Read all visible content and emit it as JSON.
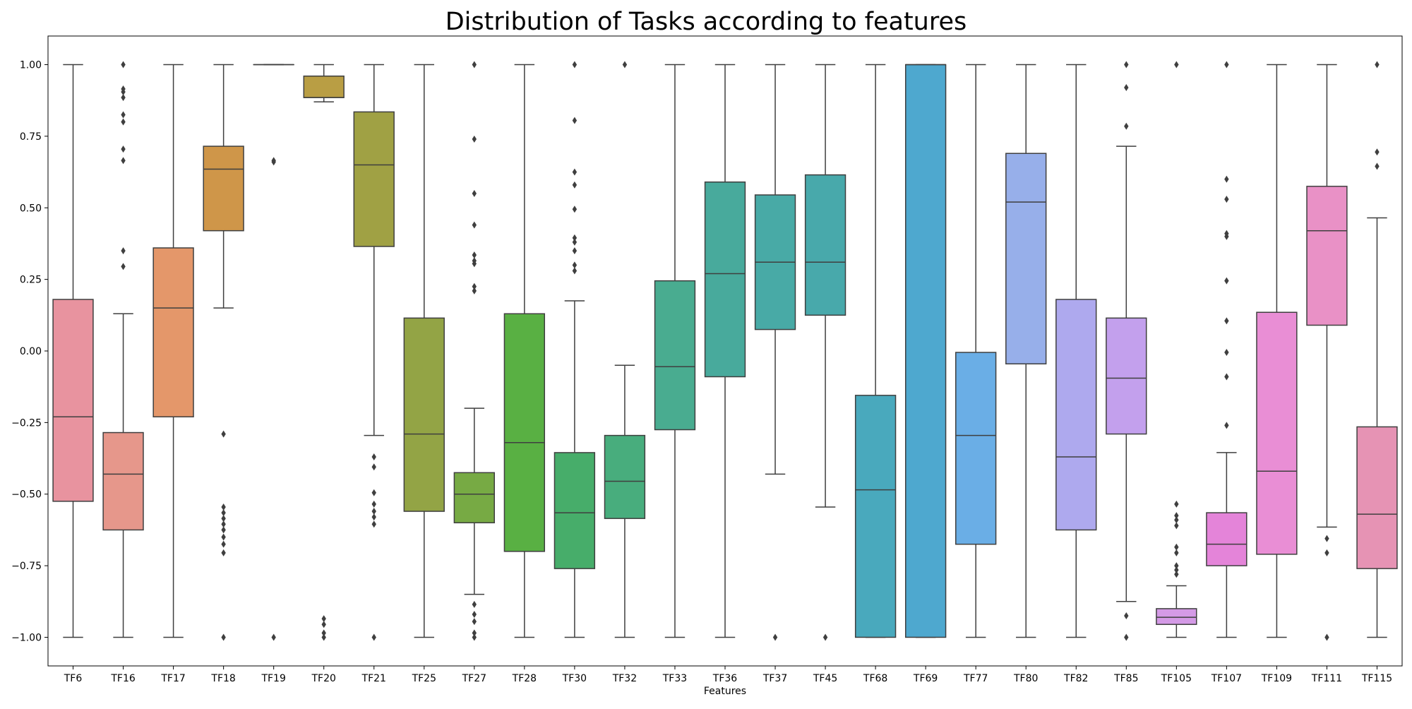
{
  "chart_data": {
    "type": "box",
    "title": "Distribution of Tasks according to features",
    "xlabel": "Features",
    "ylabel": "",
    "ylim": [
      -1.1,
      1.1
    ],
    "yticks": [
      1.0,
      0.75,
      0.5,
      0.25,
      0.0,
      -0.25,
      -0.5,
      -0.75,
      -1.0
    ],
    "ytick_labels": [
      "1.00",
      "0.75",
      "0.50",
      "0.25",
      "0.00",
      "−0.25",
      "−0.50",
      "−0.75",
      "−1.00"
    ],
    "grid": false,
    "legend": "none",
    "categories": [
      "TF6",
      "TF16",
      "TF17",
      "TF18",
      "TF19",
      "TF20",
      "TF21",
      "TF25",
      "TF27",
      "TF28",
      "TF30",
      "TF32",
      "TF33",
      "TF36",
      "TF37",
      "TF45",
      "TF68",
      "TF69",
      "TF77",
      "TF80",
      "TF82",
      "TF85",
      "TF105",
      "TF107",
      "TF109",
      "TF111",
      "TF115"
    ],
    "boxes": [
      {
        "q1": -0.525,
        "median": -0.23,
        "q3": 0.18,
        "whislo": -1.0,
        "whishi": 1.0,
        "fliers": [],
        "color": "#e8939f"
      },
      {
        "q1": -0.625,
        "median": -0.43,
        "q3": -0.285,
        "whislo": -1.0,
        "whishi": 0.13,
        "fliers": [
          0.295,
          0.35,
          0.665,
          0.705,
          0.8,
          0.825,
          0.885,
          0.905,
          0.915,
          1.0
        ],
        "color": "#e6978b"
      },
      {
        "q1": -0.23,
        "median": 0.15,
        "q3": 0.36,
        "whislo": -1.0,
        "whishi": 1.0,
        "fliers": [],
        "color": "#e4976a"
      },
      {
        "q1": 0.42,
        "median": 0.635,
        "q3": 0.715,
        "whislo": 0.15,
        "whishi": 1.0,
        "fliers": [
          -0.29,
          -0.545,
          -0.565,
          -0.585,
          -0.605,
          -0.625,
          -0.65,
          -0.675,
          -0.705,
          -1.0
        ],
        "color": "#cf9649"
      },
      {
        "q1": 1.0,
        "median": 1.0,
        "q3": 1.0,
        "whislo": 1.0,
        "whishi": 1.0,
        "fliers": [
          0.665,
          0.66,
          -1.0
        ],
        "color": "#b99e44"
      },
      {
        "q1": 0.885,
        "median": 0.885,
        "q3": 0.96,
        "whislo": 0.87,
        "whishi": 1.0,
        "fliers": [
          -0.935,
          -0.955,
          -0.985,
          -1.0
        ],
        "color": "#b99e44"
      },
      {
        "q1": 0.365,
        "median": 0.65,
        "q3": 0.835,
        "whislo": -0.295,
        "whishi": 1.0,
        "fliers": [
          -0.37,
          -0.405,
          -0.495,
          -0.535,
          -0.56,
          -0.58,
          -0.605,
          -1.0
        ],
        "color": "#a0a144"
      },
      {
        "q1": -0.56,
        "median": -0.29,
        "q3": 0.115,
        "whislo": -1.0,
        "whishi": 1.0,
        "fliers": [],
        "color": "#93a445"
      },
      {
        "q1": -0.6,
        "median": -0.5,
        "q3": -0.425,
        "whislo": -0.85,
        "whishi": -0.2,
        "fliers": [
          0.21,
          0.225,
          0.305,
          0.315,
          0.335,
          0.44,
          0.55,
          0.74,
          1.0,
          -0.885,
          -0.92,
          -0.945,
          -0.985,
          -1.0
        ],
        "color": "#77aa44"
      },
      {
        "q1": -0.7,
        "median": -0.32,
        "q3": 0.13,
        "whislo": -1.0,
        "whishi": 1.0,
        "fliers": [],
        "color": "#59b043"
      },
      {
        "q1": -0.76,
        "median": -0.565,
        "q3": -0.355,
        "whislo": -1.0,
        "whishi": 0.175,
        "fliers": [
          0.28,
          0.3,
          0.35,
          0.38,
          0.395,
          0.495,
          0.58,
          0.625,
          0.805,
          1.0
        ],
        "color": "#47ad6a"
      },
      {
        "q1": -0.585,
        "median": -0.455,
        "q3": -0.295,
        "whislo": -1.0,
        "whishi": -0.05,
        "fliers": [
          1.0
        ],
        "color": "#48ad7d"
      },
      {
        "q1": -0.275,
        "median": -0.055,
        "q3": 0.245,
        "whislo": -1.0,
        "whishi": 1.0,
        "fliers": [],
        "color": "#49ac90"
      },
      {
        "q1": -0.09,
        "median": 0.27,
        "q3": 0.59,
        "whislo": -1.0,
        "whishi": 1.0,
        "fliers": [],
        "color": "#48aa9c"
      },
      {
        "q1": 0.075,
        "median": 0.31,
        "q3": 0.545,
        "whislo": -0.43,
        "whishi": 1.0,
        "fliers": [
          -1.0
        ],
        "color": "#48aaa6"
      },
      {
        "q1": 0.125,
        "median": 0.31,
        "q3": 0.615,
        "whislo": -0.545,
        "whishi": 1.0,
        "fliers": [
          -1.0
        ],
        "color": "#48a9ab"
      },
      {
        "q1": -1.0,
        "median": -0.485,
        "q3": -0.155,
        "whislo": -1.0,
        "whishi": 1.0,
        "fliers": [],
        "color": "#49a9bd"
      },
      {
        "q1": -1.0,
        "median": 1.0,
        "q3": 1.0,
        "whislo": -1.0,
        "whishi": 1.0,
        "fliers": [],
        "color": "#4ea8cf"
      },
      {
        "q1": -0.675,
        "median": -0.295,
        "q3": -0.005,
        "whislo": -1.0,
        "whishi": 1.0,
        "fliers": [],
        "color": "#6aaee6"
      },
      {
        "q1": -0.045,
        "median": 0.52,
        "q3": 0.69,
        "whislo": -1.0,
        "whishi": 1.0,
        "fliers": [],
        "color": "#97afea"
      },
      {
        "q1": -0.625,
        "median": -0.37,
        "q3": 0.18,
        "whislo": -1.0,
        "whishi": 1.0,
        "fliers": [],
        "color": "#aea9ee"
      },
      {
        "q1": -0.29,
        "median": -0.095,
        "q3": 0.115,
        "whislo": -0.875,
        "whishi": 0.715,
        "fliers": [
          0.785,
          0.92,
          1.0,
          -0.925,
          -1.0
        ],
        "color": "#c3a0ed"
      },
      {
        "q1": -0.955,
        "median": -0.93,
        "q3": -0.9,
        "whislo": -1.0,
        "whishi": -0.82,
        "fliers": [
          -0.535,
          -0.575,
          -0.59,
          -0.61,
          -0.685,
          -0.705,
          -0.75,
          -0.765,
          -0.78,
          1.0
        ],
        "color": "#d49ae6"
      },
      {
        "q1": -0.75,
        "median": -0.675,
        "q3": -0.565,
        "whislo": -1.0,
        "whishi": -0.355,
        "fliers": [
          -0.26,
          -0.09,
          -0.005,
          0.105,
          0.245,
          0.4,
          0.41,
          0.53,
          0.6,
          1.0
        ],
        "color": "#e484d9"
      },
      {
        "q1": -0.71,
        "median": -0.42,
        "q3": 0.135,
        "whislo": -1.0,
        "whishi": 1.0,
        "fliers": [],
        "color": "#e98ed5"
      },
      {
        "q1": 0.09,
        "median": 0.42,
        "q3": 0.575,
        "whislo": -0.615,
        "whishi": 1.0,
        "fliers": [
          -0.655,
          -0.705,
          -1.0
        ],
        "color": "#e991c6"
      },
      {
        "q1": -0.76,
        "median": -0.57,
        "q3": -0.265,
        "whislo": -1.0,
        "whishi": 0.465,
        "fliers": [
          0.645,
          0.695,
          1.0
        ],
        "color": "#e693b4"
      }
    ]
  }
}
